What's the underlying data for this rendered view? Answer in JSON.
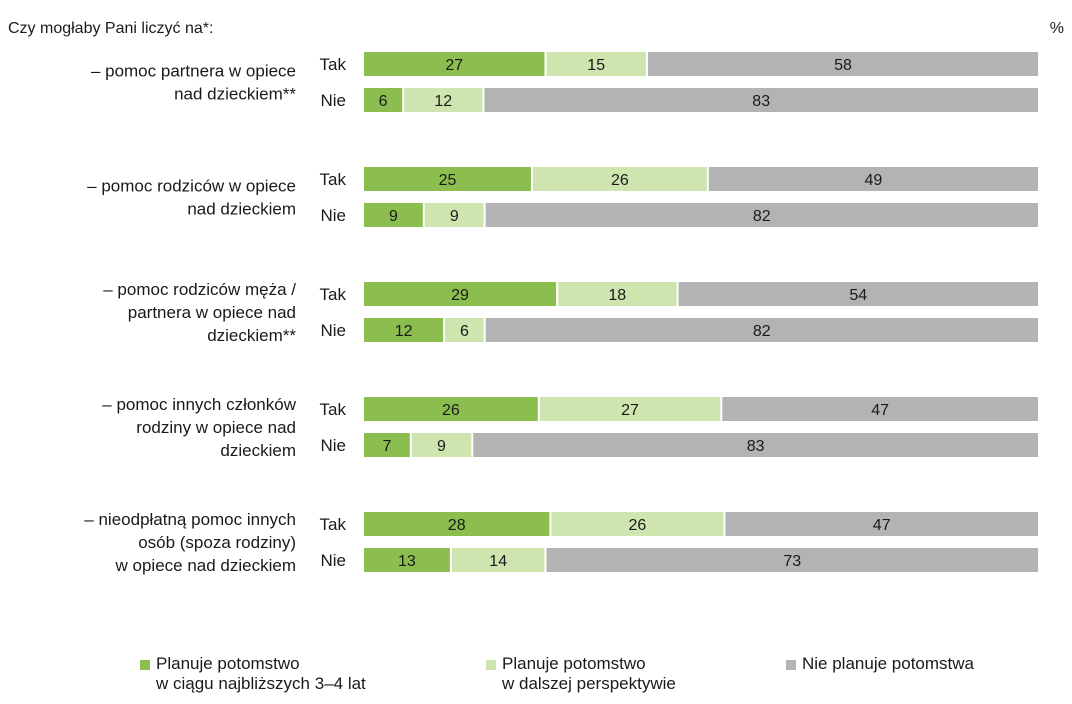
{
  "chart_data": {
    "type": "bar",
    "stacked": true,
    "orientation": "horizontal",
    "question": "Czy mogłaby Pani liczyć na*:",
    "unit": "%",
    "colors": {
      "plans_soon": "#8bbd4f",
      "plans_later": "#cfe5b0",
      "no_plans": "#b3b3b3"
    },
    "series": [
      {
        "key": "plans_soon",
        "name": "Planuje potomstwo\nw ciągu najbliższych 3–4 lat",
        "color": "#8bbd4f"
      },
      {
        "key": "plans_later",
        "name": "Planuje potomstwo\nw dalszej perspektywie",
        "color": "#cfe5b0"
      },
      {
        "key": "no_plans",
        "name": "Nie planuje potomstwa",
        "color": "#b3b3b3"
      }
    ],
    "groups": [
      {
        "label": "– pomoc partnera w opiece\nnad dzieckiem**",
        "rows": [
          {
            "answer": "Tak",
            "values": [
              27,
              15,
              58
            ]
          },
          {
            "answer": "Nie",
            "values": [
              6,
              12,
              83
            ]
          }
        ]
      },
      {
        "label": "– pomoc rodziców w opiece\nnad dzieckiem",
        "rows": [
          {
            "answer": "Tak",
            "values": [
              25,
              26,
              49
            ]
          },
          {
            "answer": "Nie",
            "values": [
              9,
              9,
              82
            ]
          }
        ]
      },
      {
        "label": "– pomoc rodziców męża /\npartnera w opiece nad\ndzieckiem**",
        "rows": [
          {
            "answer": "Tak",
            "values": [
              29,
              18,
              54
            ]
          },
          {
            "answer": "Nie",
            "values": [
              12,
              6,
              82
            ]
          }
        ]
      },
      {
        "label": "– pomoc innych członków\nrodziny w opiece nad\ndzieckiem",
        "rows": [
          {
            "answer": "Tak",
            "values": [
              26,
              27,
              47
            ]
          },
          {
            "answer": "Nie",
            "values": [
              7,
              9,
              83
            ]
          }
        ]
      },
      {
        "label": "– nieodpłatną pomoc innych\nosób (spoza rodziny)\nw opiece nad dzieckiem",
        "rows": [
          {
            "answer": "Tak",
            "values": [
              28,
              26,
              47
            ]
          },
          {
            "answer": "Nie",
            "values": [
              13,
              14,
              73
            ]
          }
        ]
      }
    ],
    "legend_position": "bottom",
    "grid": false
  }
}
